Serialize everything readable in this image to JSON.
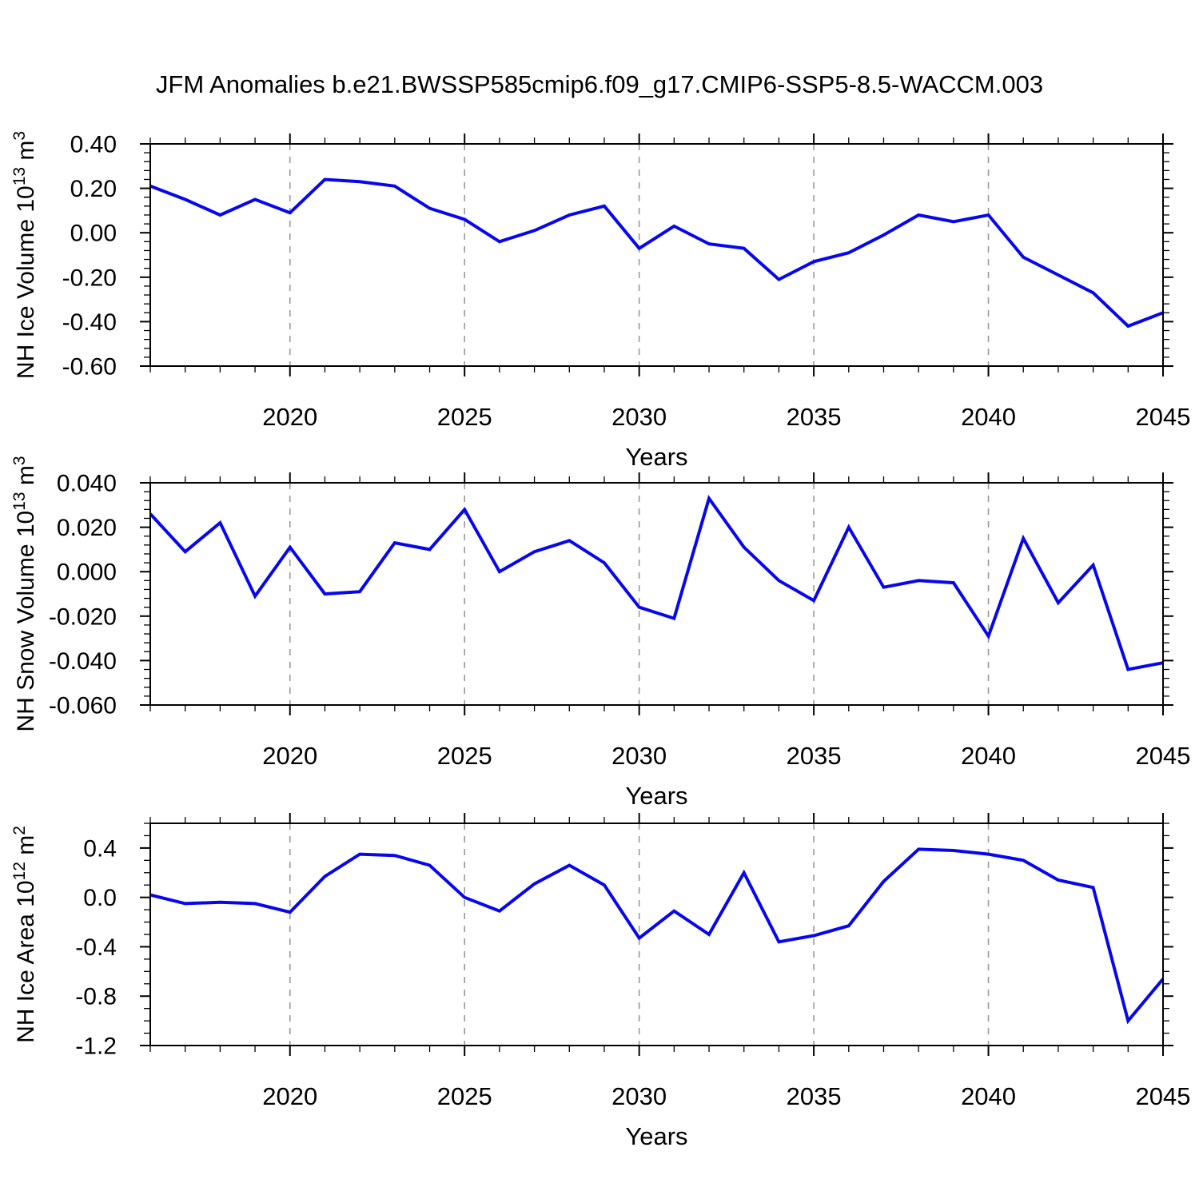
{
  "title": "JFM Anomalies b.e21.BWSSP585cmip6.f09_g17.CMIP6-SSP5-8.5-WACCM.003",
  "chart_data": [
    {
      "type": "line",
      "panel_id": "nh-ice-volume-panel",
      "ylabel_text": "NH Ice Volume 10^13 m^3",
      "ylabel_parts": [
        {
          "t": "NH Ice Volume 10"
        },
        {
          "t": "13",
          "sup": true
        },
        {
          "t": " m"
        },
        {
          "t": "3",
          "sup": true
        }
      ],
      "xlabel": "Years",
      "line_color": "#0707ee",
      "xlim": [
        2016,
        2045
      ],
      "ylim": [
        -0.6,
        0.4
      ],
      "x": [
        2016,
        2017,
        2018,
        2019,
        2020,
        2021,
        2022,
        2023,
        2024,
        2025,
        2026,
        2027,
        2028,
        2029,
        2030,
        2031,
        2032,
        2033,
        2034,
        2035,
        2036,
        2037,
        2038,
        2039,
        2040,
        2041,
        2042,
        2043,
        2044,
        2045
      ],
      "values": [
        0.21,
        0.15,
        0.08,
        0.15,
        0.09,
        0.24,
        0.23,
        0.21,
        0.11,
        0.06,
        -0.04,
        0.01,
        0.08,
        0.12,
        -0.07,
        0.03,
        -0.05,
        -0.07,
        -0.21,
        -0.13,
        -0.09,
        -0.01,
        0.08,
        0.05,
        0.08,
        -0.11,
        -0.19,
        -0.27,
        -0.42,
        -0.36
      ],
      "yticks": [
        {
          "v": 0.4,
          "label": "0.40"
        },
        {
          "v": 0.2,
          "label": "0.20"
        },
        {
          "v": 0.0,
          "label": "0.00"
        },
        {
          "v": -0.2,
          "label": "-0.20"
        },
        {
          "v": -0.4,
          "label": "-0.40"
        },
        {
          "v": -0.6,
          "label": "-0.60"
        }
      ],
      "ytick_minor_step": 0.04,
      "xticks": [
        {
          "v": 2020,
          "label": "2020"
        },
        {
          "v": 2025,
          "label": "2025"
        },
        {
          "v": 2030,
          "label": "2030"
        },
        {
          "v": 2035,
          "label": "2035"
        },
        {
          "v": 2040,
          "label": "2040"
        },
        {
          "v": 2045,
          "label": "2045"
        }
      ],
      "xtick_minor_step": 1,
      "gridlines_x": [
        2020,
        2025,
        2030,
        2035,
        2040
      ],
      "grid_style": "vertical-dashed",
      "legend": "none"
    },
    {
      "type": "line",
      "panel_id": "nh-snow-volume-panel",
      "ylabel_text": "NH Snow Volume 10^13 m^3",
      "ylabel_parts": [
        {
          "t": "NH Snow Volume 10"
        },
        {
          "t": "13",
          "sup": true
        },
        {
          "t": " m"
        },
        {
          "t": "3",
          "sup": true
        }
      ],
      "xlabel": "Years",
      "line_color": "#0707ee",
      "xlim": [
        2016,
        2045
      ],
      "ylim": [
        -0.06,
        0.04
      ],
      "x": [
        2016,
        2017,
        2018,
        2019,
        2020,
        2021,
        2022,
        2023,
        2024,
        2025,
        2026,
        2027,
        2028,
        2029,
        2030,
        2031,
        2032,
        2033,
        2034,
        2035,
        2036,
        2037,
        2038,
        2039,
        2040,
        2041,
        2042,
        2043,
        2044,
        2045
      ],
      "values": [
        0.026,
        0.009,
        0.022,
        -0.011,
        0.011,
        -0.01,
        -0.009,
        0.013,
        0.01,
        0.028,
        0.0,
        0.009,
        0.014,
        0.004,
        -0.016,
        -0.021,
        0.033,
        0.011,
        -0.004,
        -0.013,
        0.02,
        -0.007,
        -0.004,
        -0.005,
        -0.029,
        0.015,
        -0.014,
        0.003,
        -0.044,
        -0.041
      ],
      "yticks": [
        {
          "v": 0.04,
          "label": "0.040"
        },
        {
          "v": 0.02,
          "label": "0.020"
        },
        {
          "v": 0.0,
          "label": "0.000"
        },
        {
          "v": -0.02,
          "label": "-0.020"
        },
        {
          "v": -0.04,
          "label": "-0.040"
        },
        {
          "v": -0.06,
          "label": "-0.060"
        }
      ],
      "ytick_minor_step": 0.004,
      "xticks": [
        {
          "v": 2020,
          "label": "2020"
        },
        {
          "v": 2025,
          "label": "2025"
        },
        {
          "v": 2030,
          "label": "2030"
        },
        {
          "v": 2035,
          "label": "2035"
        },
        {
          "v": 2040,
          "label": "2040"
        },
        {
          "v": 2045,
          "label": "2045"
        }
      ],
      "xtick_minor_step": 1,
      "gridlines_x": [
        2020,
        2025,
        2030,
        2035,
        2040
      ],
      "grid_style": "vertical-dashed",
      "legend": "none"
    },
    {
      "type": "line",
      "panel_id": "nh-ice-area-panel",
      "ylabel_text": "NH Ice Area 10^12 m^2",
      "ylabel_parts": [
        {
          "t": "NH Ice Area 10"
        },
        {
          "t": "12",
          "sup": true
        },
        {
          "t": " m"
        },
        {
          "t": "2",
          "sup": true
        }
      ],
      "xlabel": "Years",
      "line_color": "#0707ee",
      "xlim": [
        2016,
        2045
      ],
      "ylim": [
        -1.2,
        0.6
      ],
      "x": [
        2016,
        2017,
        2018,
        2019,
        2020,
        2021,
        2022,
        2023,
        2024,
        2025,
        2026,
        2027,
        2028,
        2029,
        2030,
        2031,
        2032,
        2033,
        2034,
        2035,
        2036,
        2037,
        2038,
        2039,
        2040,
        2041,
        2042,
        2043,
        2044,
        2045
      ],
      "values": [
        0.02,
        -0.05,
        -0.04,
        -0.05,
        -0.12,
        0.17,
        0.35,
        0.34,
        0.26,
        0.0,
        -0.11,
        0.11,
        0.26,
        0.1,
        -0.33,
        -0.11,
        -0.3,
        0.2,
        -0.36,
        -0.31,
        -0.23,
        0.13,
        0.39,
        0.38,
        0.35,
        0.3,
        0.14,
        0.08,
        -1.0,
        -0.66
      ],
      "yticks": [
        {
          "v": 0.4,
          "label": "0.4"
        },
        {
          "v": 0.0,
          "label": "0.0"
        },
        {
          "v": -0.4,
          "label": "-0.4"
        },
        {
          "v": -0.8,
          "label": "-0.8"
        },
        {
          "v": -1.2,
          "label": "-1.2"
        }
      ],
      "ytick_minor_step": 0.1,
      "xticks": [
        {
          "v": 2020,
          "label": "2020"
        },
        {
          "v": 2025,
          "label": "2025"
        },
        {
          "v": 2030,
          "label": "2030"
        },
        {
          "v": 2035,
          "label": "2035"
        },
        {
          "v": 2040,
          "label": "2040"
        },
        {
          "v": 2045,
          "label": "2045"
        }
      ],
      "xtick_minor_step": 1,
      "gridlines_x": [
        2020,
        2025,
        2030,
        2035,
        2040
      ],
      "grid_style": "vertical-dashed",
      "legend": "none"
    }
  ]
}
